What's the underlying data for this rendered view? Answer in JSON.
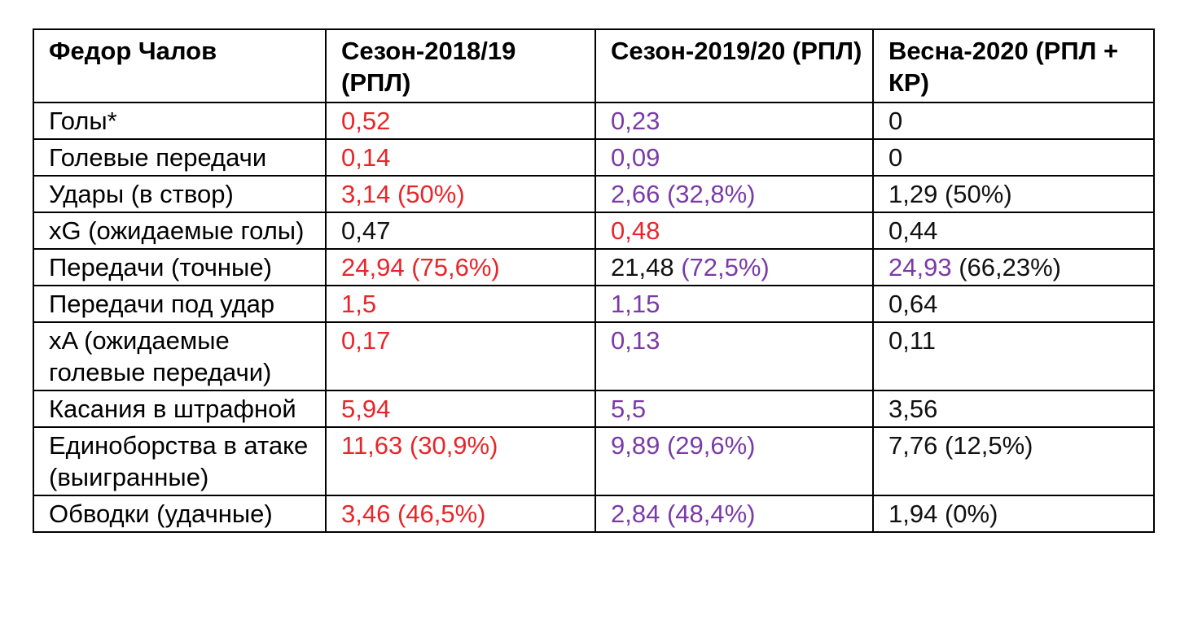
{
  "colors": {
    "red": "#e8262a",
    "purple": "#7a3aa8",
    "black": "#111111"
  },
  "table": {
    "headers": [
      "Федор Чалов",
      "Сезон-2018/19 (РПЛ)",
      "Сезон-2019/20 (РПЛ)",
      "Весна-2020 (РПЛ + КР)"
    ],
    "rows": [
      {
        "label": "Голы*",
        "cells": [
          [
            {
              "text": "0,52",
              "color": "red"
            }
          ],
          [
            {
              "text": "0,23",
              "color": "purple"
            }
          ],
          [
            {
              "text": "0",
              "color": "black"
            }
          ]
        ]
      },
      {
        "label": "Голевые передачи",
        "cells": [
          [
            {
              "text": "0,14",
              "color": "red"
            }
          ],
          [
            {
              "text": "0,09",
              "color": "purple"
            }
          ],
          [
            {
              "text": "0",
              "color": "black"
            }
          ]
        ]
      },
      {
        "label": "Удары (в створ)",
        "cells": [
          [
            {
              "text": "3,14 (50%)",
              "color": "red"
            }
          ],
          [
            {
              "text": "2,66 (32,8%)",
              "color": "purple"
            }
          ],
          [
            {
              "text": "1,29 (50%)",
              "color": "black"
            }
          ]
        ]
      },
      {
        "label": "xG (ожидаемые голы)",
        "cells": [
          [
            {
              "text": "0,47",
              "color": "black"
            }
          ],
          [
            {
              "text": "0,48",
              "color": "red"
            }
          ],
          [
            {
              "text": "0,44",
              "color": "black"
            }
          ]
        ]
      },
      {
        "label": "Передачи (точные)",
        "cells": [
          [
            {
              "text": "24,94 (75,6%)",
              "color": "red"
            }
          ],
          [
            {
              "text": "21,48 ",
              "color": "black"
            },
            {
              "text": "(72,5%)",
              "color": "purple"
            }
          ],
          [
            {
              "text": "24,93 ",
              "color": "purple"
            },
            {
              "text": "(66,23%)",
              "color": "black"
            }
          ]
        ]
      },
      {
        "label": "Передачи под удар",
        "cells": [
          [
            {
              "text": "1,5",
              "color": "red"
            }
          ],
          [
            {
              "text": "1,15",
              "color": "purple"
            }
          ],
          [
            {
              "text": "0,64",
              "color": "black"
            }
          ]
        ]
      },
      {
        "label": "xA (ожидаемые голевые передачи)",
        "cells": [
          [
            {
              "text": "0,17",
              "color": "red"
            }
          ],
          [
            {
              "text": "0,13",
              "color": "purple"
            }
          ],
          [
            {
              "text": "0,11",
              "color": "black"
            }
          ]
        ]
      },
      {
        "label": "Касания в штрафной",
        "cells": [
          [
            {
              "text": "5,94",
              "color": "red"
            }
          ],
          [
            {
              "text": "5,5",
              "color": "purple"
            }
          ],
          [
            {
              "text": "3,56",
              "color": "black"
            }
          ]
        ]
      },
      {
        "label": "Единоборства в атаке (выигранные)",
        "cells": [
          [
            {
              "text": "11,63 (30,9%)",
              "color": "red"
            }
          ],
          [
            {
              "text": "9,89 (29,6%)",
              "color": "purple"
            }
          ],
          [
            {
              "text": "7,76 (12,5%)",
              "color": "black"
            }
          ]
        ]
      },
      {
        "label": "Обводки (удачные)",
        "cells": [
          [
            {
              "text": "3,46 (46,5%)",
              "color": "red"
            }
          ],
          [
            {
              "text": "2,84 (48,4%)",
              "color": "purple"
            }
          ],
          [
            {
              "text": "1,94 (0%)",
              "color": "black"
            }
          ]
        ]
      }
    ]
  }
}
